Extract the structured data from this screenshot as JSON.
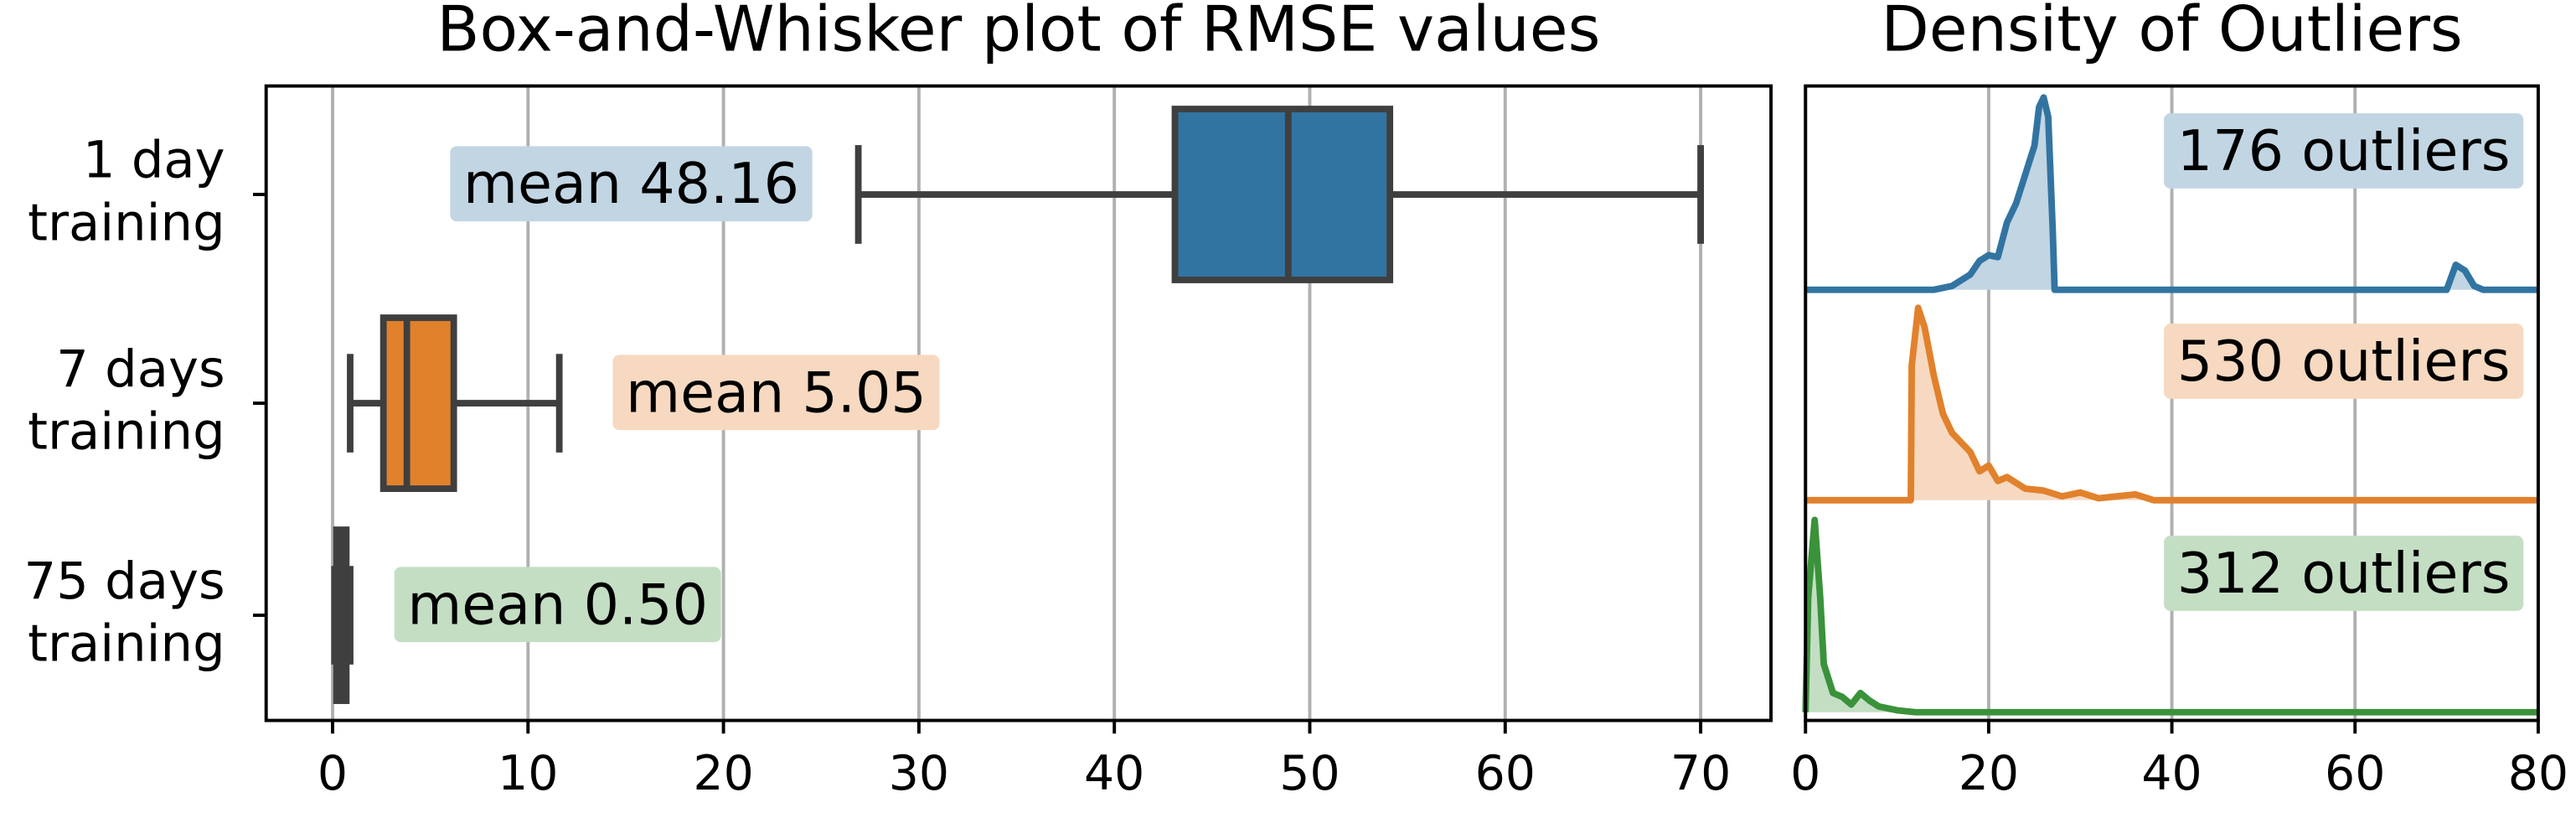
{
  "chart_data": [
    {
      "type": "box",
      "title": "Box-and-Whisker plot of RMSE values",
      "categories": [
        "1 day\ntraining",
        "7 days\ntraining",
        "75 days\ntraining"
      ],
      "boxes": [
        {
          "color": "#3274a1",
          "whislo": 26.9,
          "q1": 43.1,
          "med": 48.9,
          "q3": 54.1,
          "whishi": 70
        },
        {
          "color": "#e1812c",
          "whislo": 0.9,
          "q1": 2.6,
          "med": 3.8,
          "q3": 6.2,
          "whishi": 11.6
        },
        {
          "color": "#3a923a",
          "whislo": 0.1,
          "q1": 0.2,
          "med": 0.4,
          "q3": 0.7,
          "whishi": 0.9
        }
      ],
      "means": {
        "values": [
          48.16,
          5.05,
          0.5
        ],
        "value_labels": [
          "mean 48.16",
          "mean 5.05",
          "mean 0.50"
        ]
      },
      "xlim": [
        -3.4,
        73.6
      ],
      "xticks": [
        0,
        10,
        20,
        30,
        40,
        50,
        60,
        70
      ],
      "grid": true
    },
    {
      "type": "density",
      "title": "Density of Outliers",
      "series": [
        {
          "color": "#3274a1",
          "x": [
            0,
            14,
            16,
            18,
            19,
            20,
            21,
            22,
            23,
            24,
            25,
            25.5,
            26,
            26.5,
            27,
            27.2,
            70,
            71,
            72,
            73,
            74,
            80
          ],
          "values": [
            0,
            0,
            0.02,
            0.08,
            0.15,
            0.18,
            0.17,
            0.35,
            0.45,
            0.6,
            0.75,
            0.95,
            1.0,
            0.9,
            0.3,
            0,
            0,
            0.13,
            0.1,
            0.02,
            0,
            0
          ]
        },
        {
          "color": "#e1812c",
          "x": [
            0,
            11.5,
            11.6,
            12.3,
            13,
            14,
            15,
            16,
            17,
            18,
            19,
            20,
            21,
            22,
            24,
            26,
            28,
            30,
            32,
            34,
            36,
            38,
            80
          ],
          "values": [
            0,
            0,
            0.7,
            1.0,
            0.9,
            0.65,
            0.45,
            0.35,
            0.3,
            0.25,
            0.15,
            0.18,
            0.1,
            0.12,
            0.06,
            0.05,
            0.02,
            0.04,
            0.01,
            0.02,
            0.03,
            0,
            0
          ]
        },
        {
          "color": "#3a923a",
          "x": [
            0,
            0.3,
            1,
            1.6,
            2,
            3,
            4,
            5,
            6,
            7,
            8,
            10,
            12,
            80
          ],
          "values": [
            0,
            0.6,
            1.0,
            0.6,
            0.25,
            0.1,
            0.08,
            0.04,
            0.1,
            0.06,
            0.03,
            0.01,
            0,
            0
          ]
        }
      ],
      "outliers": {
        "values": [
          176,
          530,
          312
        ],
        "value_labels": [
          "176 outliers",
          "530 outliers",
          "312 outliers"
        ]
      },
      "xlim": [
        0,
        80
      ],
      "xticks": [
        0,
        20,
        40,
        60,
        80
      ],
      "ylim": [
        0,
        1
      ],
      "grid": true
    }
  ]
}
